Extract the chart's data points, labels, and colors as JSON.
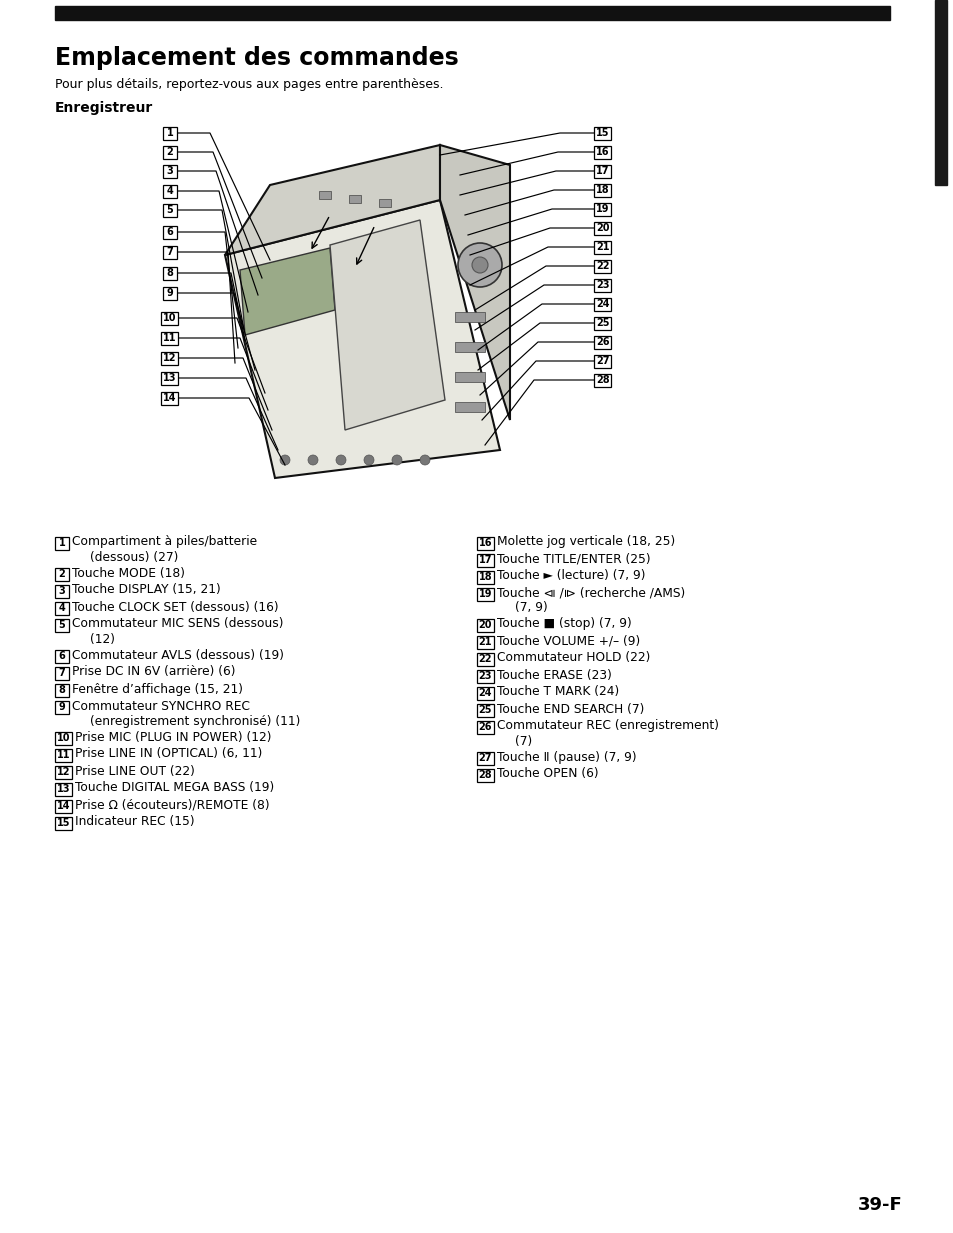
{
  "bg_color": "#ffffff",
  "title": "Emplacement des commandes",
  "subtitle": "Pour plus détails, reportez-vous aux pages entre parenthèses.",
  "section": "Enregistreur",
  "page_number": "39-F",
  "left_labels": [
    {
      "num": "1",
      "line1": "Compartiment à piles/batterie",
      "line2": "(dessous) (27)"
    },
    {
      "num": "2",
      "line1": "Touche MODE (18)",
      "line2": ""
    },
    {
      "num": "3",
      "line1": "Touche DISPLAY (15, 21)",
      "line2": ""
    },
    {
      "num": "4",
      "line1": "Touche CLOCK SET (dessous) (16)",
      "line2": ""
    },
    {
      "num": "5",
      "line1": "Commutateur MIC SENS (dessous)",
      "line2": "(12)"
    },
    {
      "num": "6",
      "line1": "Commutateur AVLS (dessous) (19)",
      "line2": ""
    },
    {
      "num": "7",
      "line1": "Prise DC IN 6V (arrière) (6)",
      "line2": ""
    },
    {
      "num": "8",
      "line1": "Fenêtre d’affichage (15, 21)",
      "line2": ""
    },
    {
      "num": "9",
      "line1": "Commutateur SYNCHRO REC",
      "line2": "(enregistrement synchronisé) (11)"
    },
    {
      "num": "10",
      "line1": "Prise MIC (PLUG IN POWER) (12)",
      "line2": ""
    },
    {
      "num": "11",
      "line1": "Prise LINE IN (OPTICAL) (6, 11)",
      "line2": ""
    },
    {
      "num": "12",
      "line1": "Prise LINE OUT (22)",
      "line2": ""
    },
    {
      "num": "13",
      "line1": "Touche DIGITAL MEGA BASS (19)",
      "line2": ""
    },
    {
      "num": "14",
      "line1": "Prise Ω (écouteurs)/REMOTE (8)",
      "line2": ""
    },
    {
      "num": "15",
      "line1": "Indicateur REC (15)",
      "line2": ""
    }
  ],
  "right_labels": [
    {
      "num": "15",
      "line1": "Indicateur REC (15)",
      "line2": ""
    },
    {
      "num": "16",
      "line1": "Molette jog verticale (18, 25)",
      "line2": ""
    },
    {
      "num": "17",
      "line1": "Touche TITLE/ENTER (25)",
      "line2": ""
    },
    {
      "num": "18",
      "line1": "Touche ► (lecture) (7, 9)",
      "line2": ""
    },
    {
      "num": "19",
      "line1": "Touche ⧏⧐ (recherche /AMS)",
      "line2": "(7, 9)"
    },
    {
      "num": "20",
      "line1": "Touche ■ (stop) (7, 9)",
      "line2": ""
    },
    {
      "num": "21",
      "line1": "Touche VOLUME +/– (9)",
      "line2": ""
    },
    {
      "num": "22",
      "line1": "Commutateur HOLD (22)",
      "line2": ""
    },
    {
      "num": "23",
      "line1": "Touche ERASE (23)",
      "line2": ""
    },
    {
      "num": "24",
      "line1": "Touche T MARK (24)",
      "line2": ""
    },
    {
      "num": "25",
      "line1": "Touche END SEARCH (7)",
      "line2": ""
    },
    {
      "num": "26",
      "line1": "Commutateur REC (enregistrement)",
      "line2": "(7)"
    },
    {
      "num": "27",
      "line1": "Touche Ⅱ (pause) (7, 9)",
      "line2": ""
    },
    {
      "num": "28",
      "line1": "Touche OPEN (6)",
      "line2": ""
    }
  ],
  "text_left_labels": [
    {
      "num": "1",
      "line1": "Compartiment à piles/batterie",
      "line2": "(dessous) (27)"
    },
    {
      "num": "2",
      "line1": "Touche MODE (18)",
      "line2": ""
    },
    {
      "num": "3",
      "line1": "Touche DISPLAY (15, 21)",
      "line2": ""
    },
    {
      "num": "4",
      "line1": "Touche CLOCK SET (dessous) (16)",
      "line2": ""
    },
    {
      "num": "5",
      "line1": "Commutateur MIC SENS (dessous)",
      "line2": "(12)"
    },
    {
      "num": "6",
      "line1": "Commutateur AVLS (dessous) (19)",
      "line2": ""
    },
    {
      "num": "7",
      "line1": "Prise DC IN 6V (arrière) (6)",
      "line2": ""
    },
    {
      "num": "8",
      "line1": "Fenêtre d’affichage (15, 21)",
      "line2": ""
    },
    {
      "num": "9",
      "line1": "Commutateur SYNCHRO REC",
      "line2": "(enregistrement synchronisé) (11)"
    },
    {
      "num": "10",
      "line1": "Prise MIC (PLUG IN POWER) (12)",
      "line2": ""
    },
    {
      "num": "11",
      "line1": "Prise LINE IN (OPTICAL) (6, 11)",
      "line2": ""
    },
    {
      "num": "12",
      "line1": "Prise LINE OUT (22)",
      "line2": ""
    },
    {
      "num": "13",
      "line1": "Touche DIGITAL MEGA BASS (19)",
      "line2": ""
    },
    {
      "num": "14",
      "line1": "Prise Ω (écouteurs)/REMOTE (8)",
      "line2": ""
    },
    {
      "num": "15",
      "line1": "Indicateur REC (15)",
      "line2": ""
    }
  ],
  "text_right_labels": [
    {
      "num": "16",
      "line1": "Molette jog verticale (18, 25)",
      "line2": ""
    },
    {
      "num": "17",
      "line1": "Touche TITLE/ENTER (25)",
      "line2": ""
    },
    {
      "num": "18",
      "line1": "Touche ► (lecture) (7, 9)",
      "line2": ""
    },
    {
      "num": "19",
      "line1": "Touche ⧏ /⧐ (recherche /AMS)",
      "line2": "(7, 9)"
    },
    {
      "num": "20",
      "line1": "Touche ■ (stop) (7, 9)",
      "line2": ""
    },
    {
      "num": "21",
      "line1": "Touche VOLUME +/– (9)",
      "line2": ""
    },
    {
      "num": "22",
      "line1": "Commutateur HOLD (22)",
      "line2": ""
    },
    {
      "num": "23",
      "line1": "Touche ERASE (23)",
      "line2": ""
    },
    {
      "num": "24",
      "line1": "Touche T MARK (24)",
      "line2": ""
    },
    {
      "num": "25",
      "line1": "Touche END SEARCH (7)",
      "line2": ""
    },
    {
      "num": "26",
      "line1": "Commutateur REC (enregistrement)",
      "line2": "(7)"
    },
    {
      "num": "27",
      "line1": "Touche Ⅱ (pause) (7, 9)",
      "line2": ""
    },
    {
      "num": "28",
      "line1": "Touche OPEN (6)",
      "line2": ""
    }
  ]
}
